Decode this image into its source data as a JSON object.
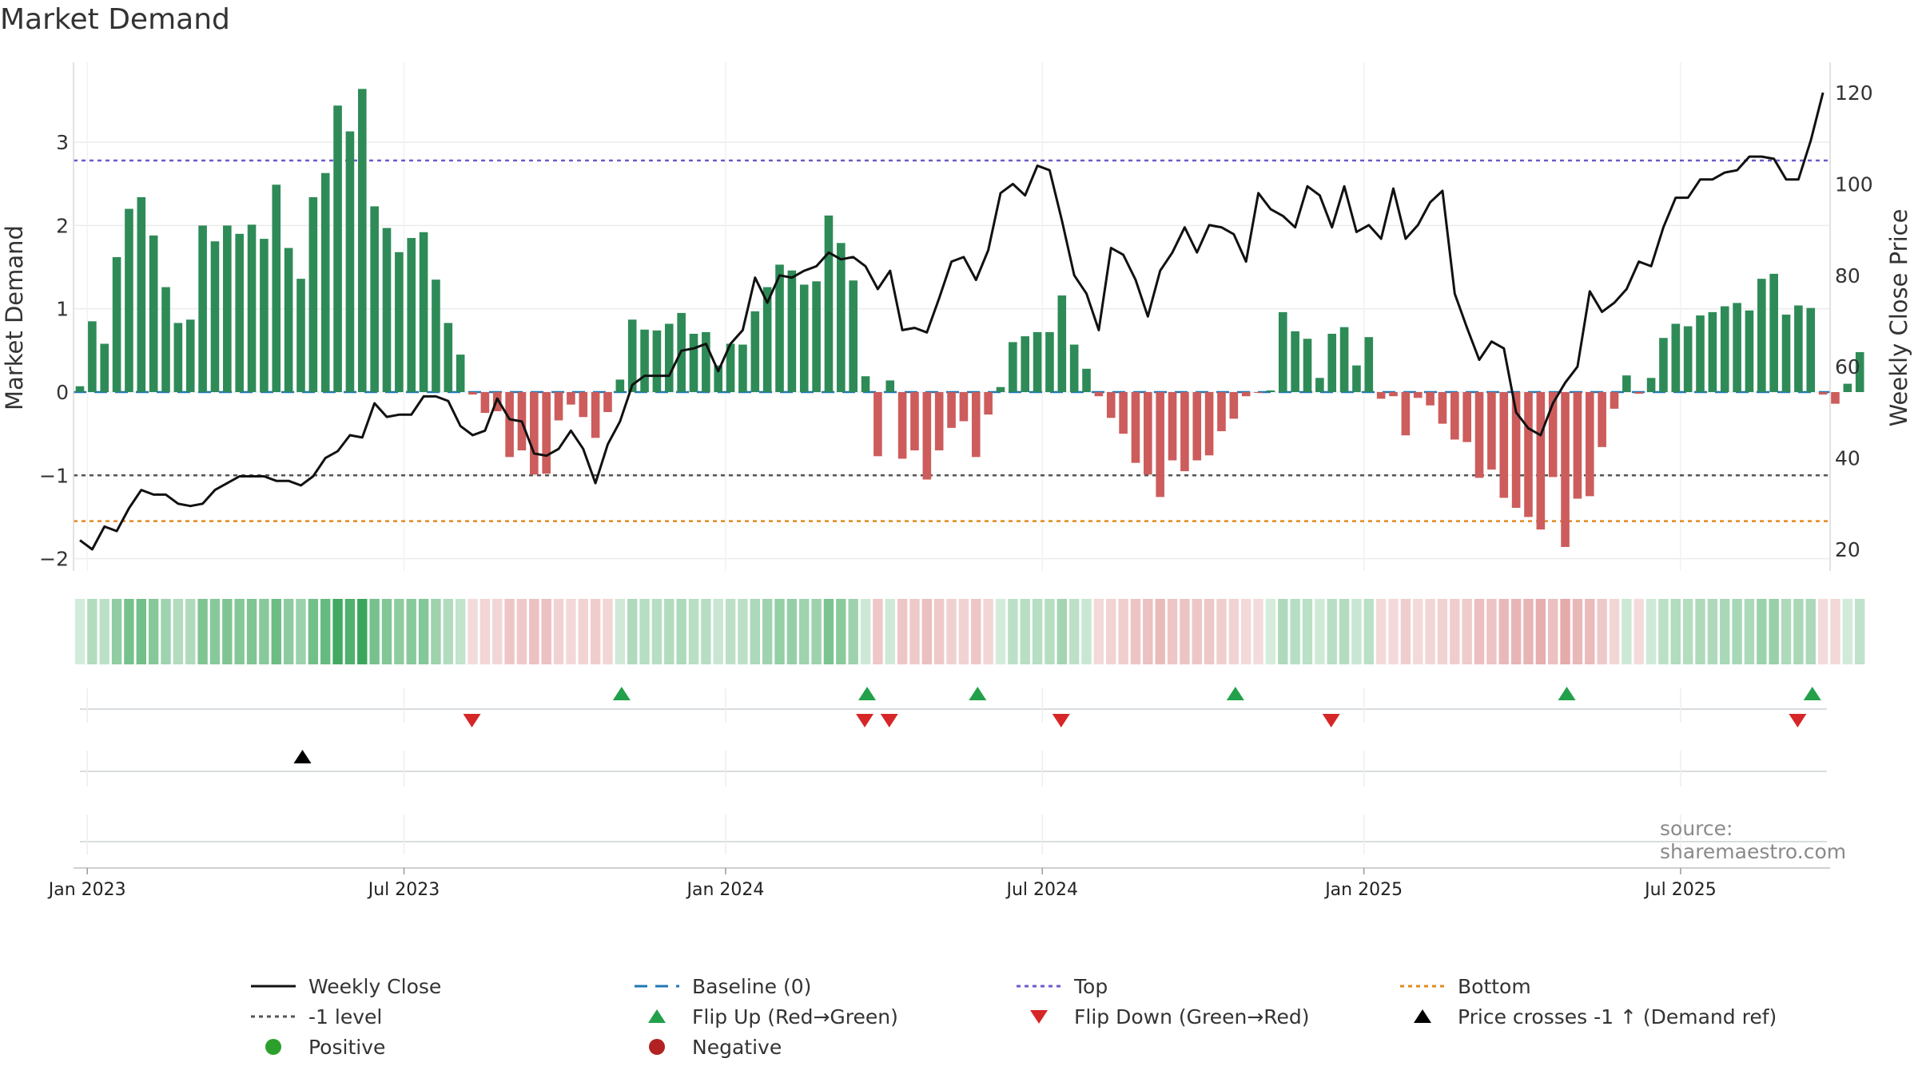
{
  "title": "Market Demand",
  "source": "source: sharemaestro.com",
  "chart_data": {
    "type": "bar",
    "title": "Market Demand",
    "ylabel_left": "Market Demand",
    "ylabel_right": "Weekly Close Price",
    "ylim_left": [
      -2.2,
      3.9
    ],
    "ylim_right": [
      15,
      125
    ],
    "yticks_left": [
      -2,
      -1,
      0,
      1,
      2,
      3
    ],
    "yticks_right": [
      20,
      40,
      60,
      80,
      100,
      120
    ],
    "ytick_labels_left": [
      "−2",
      "−1",
      "0",
      "1",
      "2",
      "3"
    ],
    "ytick_labels_right": [
      "20",
      "40",
      "60",
      "80",
      "100",
      "120"
    ],
    "x_tick_labels": [
      "Jan 2023",
      "Jul 2023",
      "Jan 2024",
      "Jul 2024",
      "Jan 2025",
      "Jul 2025"
    ],
    "x_tick_weeks": [
      0.6,
      26.4,
      52.6,
      78.4,
      104.6,
      130.4
    ],
    "week_count": 144,
    "levels": {
      "top": 2.78,
      "minus_one": -1.0,
      "bottom": -1.55,
      "baseline": 0
    },
    "series": [
      {
        "name": "Market Demand",
        "values": [
          0.07,
          0.85,
          0.58,
          1.62,
          2.2,
          2.34,
          1.88,
          1.26,
          0.83,
          0.87,
          2.0,
          1.81,
          2.0,
          1.9,
          2.01,
          1.84,
          2.49,
          1.73,
          1.36,
          2.34,
          2.63,
          3.44,
          3.13,
          3.64,
          2.23,
          1.97,
          1.68,
          1.85,
          1.92,
          1.35,
          0.83,
          0.45,
          -0.03,
          -0.25,
          -0.23,
          -0.78,
          -0.7,
          -0.99,
          -0.98,
          -0.34,
          -0.15,
          -0.3,
          -0.55,
          -0.24,
          0.15,
          0.87,
          0.75,
          0.74,
          0.82,
          0.95,
          0.7,
          0.72,
          0.32,
          0.58,
          0.57,
          0.97,
          1.26,
          1.53,
          1.46,
          1.29,
          1.33,
          2.12,
          1.79,
          1.34,
          0.19,
          -0.77,
          0.14,
          -0.8,
          -0.7,
          -1.05,
          -0.7,
          -0.43,
          -0.35,
          -0.78,
          -0.27,
          0.06,
          0.6,
          0.67,
          0.72,
          0.72,
          1.16,
          0.57,
          0.28,
          -0.05,
          -0.31,
          -0.5,
          -0.85,
          -0.99,
          -1.26,
          -0.82,
          -0.95,
          -0.82,
          -0.76,
          -0.47,
          -0.32,
          -0.05,
          -0.01,
          0.02,
          0.96,
          0.73,
          0.64,
          0.17,
          0.7,
          0.78,
          0.32,
          0.66,
          -0.08,
          -0.05,
          -0.52,
          -0.07,
          -0.16,
          -0.38,
          -0.57,
          -0.6,
          -1.03,
          -0.93,
          -1.27,
          -1.39,
          -1.5,
          -1.65,
          -1.02,
          -1.86,
          -1.28,
          -1.25,
          -0.66,
          -0.2,
          0.2,
          -0.02,
          0.17,
          0.65,
          0.82,
          0.79,
          0.92,
          0.96,
          1.03,
          1.07,
          0.98,
          1.36,
          1.42,
          0.93,
          1.04,
          1.01,
          -0.03,
          -0.14,
          0.1,
          0.48
        ]
      },
      {
        "name": "Weekly Close",
        "values": [
          22,
          20,
          25,
          24,
          29,
          33,
          32,
          32,
          30,
          29.5,
          30,
          33,
          34.5,
          36,
          36,
          36,
          35,
          35,
          34,
          36,
          40,
          41.5,
          45,
          44.5,
          52,
          49,
          49.5,
          49.5,
          53.5,
          53.5,
          52.5,
          47,
          45,
          46,
          53,
          48.5,
          48,
          41,
          40.5,
          42,
          46,
          42,
          34.5,
          43,
          48,
          56,
          58,
          58,
          58,
          63.5,
          64,
          65,
          59,
          65,
          68,
          79.5,
          74,
          80,
          79.5,
          81,
          82,
          85,
          83.5,
          84,
          82,
          77,
          81,
          68,
          68.5,
          67.5,
          75,
          83,
          84,
          79,
          85.5,
          98,
          100,
          97.5,
          104,
          103,
          92,
          80,
          76,
          68,
          86,
          84.5,
          79,
          71,
          81,
          85,
          90.5,
          85,
          91,
          90.5,
          89,
          83,
          98,
          94.5,
          93,
          90.5,
          99.5,
          97.5,
          90.5,
          99.5,
          89.5,
          91,
          88,
          99,
          88,
          91,
          96,
          98.5,
          76,
          68.5,
          61.5,
          65.5,
          64,
          50,
          46.5,
          45,
          52,
          56.5,
          60,
          76.5,
          72,
          74,
          77,
          83,
          82,
          90.5,
          97,
          97,
          101,
          101,
          102.5,
          103,
          106,
          106,
          105.5,
          101,
          101,
          109.5,
          120
        ]
      }
    ],
    "flip_up_weeks": [
      44,
      64,
      73,
      94,
      121,
      141
    ],
    "flip_down_weeks": [
      32,
      64,
      66,
      80,
      102,
      140
    ],
    "price_cross_weeks": [
      18
    ],
    "legend": [
      {
        "label": "Weekly Close"
      },
      {
        "label": "Baseline (0)"
      },
      {
        "label": "Top"
      },
      {
        "label": "Bottom"
      },
      {
        "label": "-1 level"
      },
      {
        "label": "Flip Up (Red→Green)"
      },
      {
        "label": "Flip Down (Green→Red)"
      },
      {
        "label": "Price crosses -1 ↑ (Demand ref)"
      },
      {
        "label": "Positive"
      },
      {
        "label": "Negative"
      }
    ],
    "colors": {
      "positive": "#2e8b57",
      "negative": "#cd5c5c",
      "price": "#111111",
      "top": "#6a5acd",
      "minus_one": "#555555",
      "bottom": "#e08a1e",
      "baseline": "#1f77b4",
      "flip_up": "#22a04a",
      "flip_down": "#d62728",
      "cross": "#000000",
      "positive_dot": "#2ca02c",
      "negative_dot": "#b22222"
    }
  }
}
